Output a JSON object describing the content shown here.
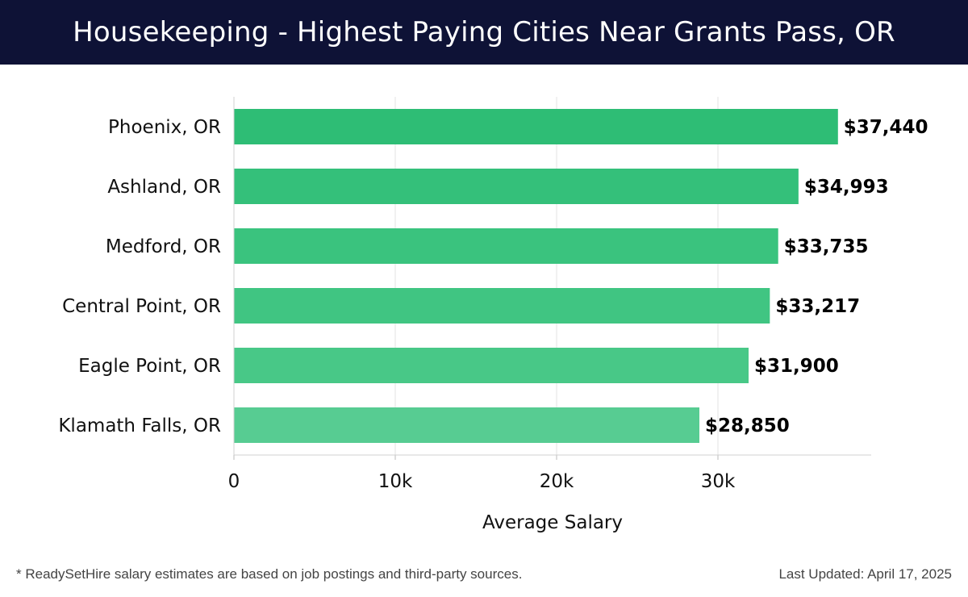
{
  "header": {
    "title": "Housekeeping - Highest Paying Cities Near Grants Pass, OR"
  },
  "chart_data": {
    "type": "bar",
    "orientation": "horizontal",
    "categories": [
      "Phoenix, OR",
      "Ashland, OR",
      "Medford, OR",
      "Central Point, OR",
      "Eagle Point, OR",
      "Klamath Falls, OR"
    ],
    "values": [
      37440,
      34993,
      33735,
      33217,
      31900,
      28850
    ],
    "value_labels": [
      "$37,440",
      "$34,993",
      "$33,735",
      "$33,217",
      "$31,900",
      "$28,850"
    ],
    "bar_colors": [
      "#2ebd75",
      "#34c07a",
      "#3ac37e",
      "#40c582",
      "#48c887",
      "#57cc92"
    ],
    "xlabel": "Average Salary",
    "xticks": [
      0,
      10000,
      20000,
      30000
    ],
    "xtick_labels": [
      "0",
      "10k",
      "20k",
      "30k"
    ],
    "xlim": [
      0,
      39500
    ],
    "grid": true
  },
  "footer": {
    "note": "* ReadySetHire salary estimates are based on job postings and third-party sources.",
    "updated": "Last Updated: April 17, 2025"
  }
}
